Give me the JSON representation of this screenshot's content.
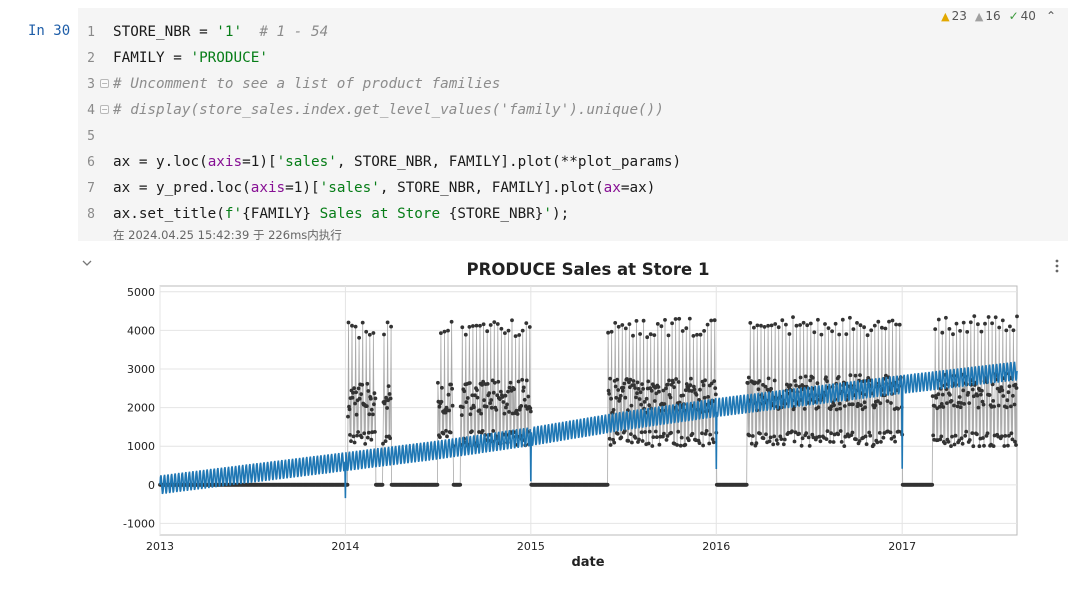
{
  "cell": {
    "prompt": "In 30",
    "inspections": {
      "warnings": "23",
      "weak_warnings": "16",
      "typos": "40"
    },
    "line_numbers": [
      "1",
      "2",
      "3",
      "4",
      "5",
      "6",
      "7",
      "8"
    ],
    "code": {
      "line1": {
        "a": "STORE_NBR = ",
        "b": "'1'",
        "c": "  # 1 - 54"
      },
      "line2": {
        "a": "FAMILY = ",
        "b": "'PRODUCE'"
      },
      "line3": "# Uncomment to see a list of product families",
      "line4": "# display(store_sales.index.get_level_values('family').unique())",
      "line6": {
        "a": "ax = y.loc(",
        "b": "axis",
        "c": "=1)[",
        "d": "'sales'",
        "e": ", STORE_NBR, FAMILY].plot(**plot_params)"
      },
      "line7": {
        "a": "ax = y_pred.loc(",
        "b": "axis",
        "c": "=1)[",
        "d": "'sales'",
        "e": ", STORE_NBR, FAMILY].plot(",
        "f": "ax",
        "g": "=ax)"
      },
      "line8": {
        "a": "ax.set_title(",
        "b": "f'",
        "c": "{FAMILY}",
        "d": " Sales at Store ",
        "e": "{STORE_NBR}",
        "f": "'",
        "g": ");"
      }
    },
    "execution_info": "在 2024.04.25 15:42:39 于 226ms内执行"
  },
  "colors": {
    "observed": "#333333",
    "observed_line": "#aaaaaa",
    "prediction": "#1f77b4"
  },
  "chart_data": {
    "type": "line",
    "title": "PRODUCE Sales at Store 1",
    "xlabel": "date",
    "ylabel": "",
    "x_range": [
      "2013-01-01",
      "2017-08-15"
    ],
    "ylim": [
      -1300,
      5150
    ],
    "x_tick_labels": [
      "2013",
      "2014",
      "2015",
      "2016",
      "2017"
    ],
    "y_ticks": [
      -1000,
      0,
      1000,
      2000,
      3000,
      4000,
      5000
    ],
    "grid": true,
    "legend": "none",
    "series": [
      {
        "style": "dots connected by grey line",
        "x": [
          "2013-01-01",
          "2013-06-01",
          "2013-12-25",
          "2014-01-01",
          "2014-01-05",
          "2014-02-01",
          "2014-02-15",
          "2014-03-01",
          "2014-03-15",
          "2014-04-01",
          "2014-05-01",
          "2014-06-15",
          "2014-07-01",
          "2014-07-15",
          "2014-08-01",
          "2014-08-15",
          "2014-09-01",
          "2014-10-01",
          "2014-11-01",
          "2014-12-01",
          "2014-12-31",
          "2015-01-01",
          "2015-02-01",
          "2015-04-01",
          "2015-05-25",
          "2015-06-01",
          "2015-07-01",
          "2015-08-01",
          "2015-10-01",
          "2015-12-01",
          "2016-01-01",
          "2016-03-01",
          "2016-06-01",
          "2016-09-01",
          "2016-12-01",
          "2017-01-01",
          "2017-03-01",
          "2017-06-01",
          "2017-08-15"
        ],
        "values": [
          0,
          0,
          0,
          0,
          3100,
          2500,
          4200,
          0,
          4150,
          0,
          0,
          0,
          3900,
          2100,
          0,
          2000,
          2300,
          2200,
          2150,
          2100,
          3950,
          0,
          0,
          0,
          0,
          2400,
          2300,
          2500,
          2400,
          2450,
          0,
          2500,
          2600,
          2500,
          2550,
          0,
          2700,
          2600,
          2500
        ],
        "annotation": "sales alternate between ~1000, ~2000-2500 and ~4000 within each week once the store is open"
      },
      {
        "style": "solid blue line",
        "x": [
          "2013-01-01",
          "2013-07-01",
          "2014-01-01",
          "2014-07-01",
          "2015-01-01",
          "2015-07-01",
          "2016-01-01",
          "2016-07-01",
          "2017-01-01",
          "2017-08-15"
        ],
        "values": [
          0,
          300,
          600,
          900,
          1250,
          1650,
          2000,
          2300,
          2600,
          2950
        ],
        "weekly_amplitude": 250
      }
    ]
  }
}
